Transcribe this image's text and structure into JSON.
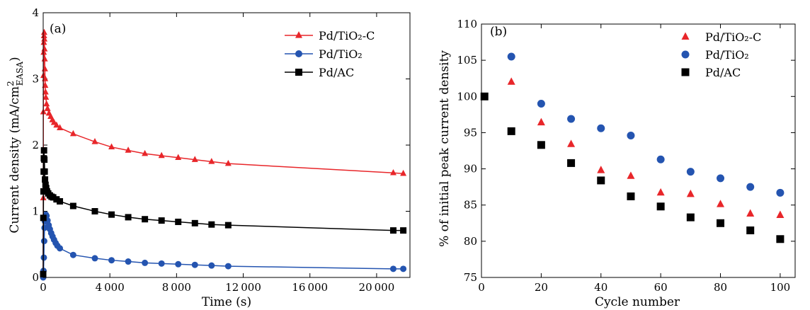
{
  "chart_data": [
    {
      "type": "line",
      "panel_label": "(a)",
      "title": "",
      "xlabel": "Time (s)",
      "ylabel_main": "Current density (mA/cm",
      "ylabel_sup": "2",
      "ylabel_sub": "EASA",
      "ylabel_close": ")",
      "xlim": [
        0,
        22000
      ],
      "ylim": [
        0,
        4
      ],
      "xticks": [
        0,
        4000,
        8000,
        12000,
        16000,
        20000
      ],
      "xtick_labels": [
        "0",
        "4 000",
        "8 000",
        "12 000",
        "16 000",
        "20 000"
      ],
      "yticks": [
        0,
        1,
        2,
        3,
        4
      ],
      "ytick_labels": [
        "0",
        "1",
        "2",
        "3",
        "4"
      ],
      "legend_position": "top-right",
      "series": [
        {
          "name": "Pd/TiO₂-C",
          "color": "#e8262a",
          "marker": "triangle",
          "points": [
            [
              0,
              0.02
            ],
            [
              5,
              1.2
            ],
            [
              10,
              2.5
            ],
            [
              20,
              3.05
            ],
            [
              30,
              3.4
            ],
            [
              40,
              3.55
            ],
            [
              50,
              3.65
            ],
            [
              60,
              3.7
            ],
            [
              70,
              3.6
            ],
            [
              80,
              3.45
            ],
            [
              90,
              3.3
            ],
            [
              100,
              3.15
            ],
            [
              110,
              3.0
            ],
            [
              120,
              2.9
            ],
            [
              140,
              2.8
            ],
            [
              160,
              2.72
            ],
            [
              200,
              2.62
            ],
            [
              260,
              2.55
            ],
            [
              350,
              2.48
            ],
            [
              450,
              2.43
            ],
            [
              550,
              2.38
            ],
            [
              650,
              2.34
            ],
            [
              800,
              2.3
            ],
            [
              1000,
              2.26
            ],
            [
              1800,
              2.17
            ],
            [
              3100,
              2.05
            ],
            [
              4100,
              1.97
            ],
            [
              5100,
              1.92
            ],
            [
              6100,
              1.87
            ],
            [
              7100,
              1.84
            ],
            [
              8100,
              1.81
            ],
            [
              9100,
              1.78
            ],
            [
              10100,
              1.75
            ],
            [
              11100,
              1.72
            ],
            [
              21000,
              1.58
            ],
            [
              21600,
              1.57
            ]
          ]
        },
        {
          "name": "Pd/TiO₂",
          "color": "#2454b0",
          "marker": "circle",
          "points": [
            [
              0,
              0.0
            ],
            [
              20,
              0.1
            ],
            [
              40,
              0.3
            ],
            [
              60,
              0.55
            ],
            [
              80,
              0.75
            ],
            [
              100,
              0.85
            ],
            [
              130,
              0.92
            ],
            [
              160,
              0.95
            ],
            [
              200,
              0.93
            ],
            [
              260,
              0.86
            ],
            [
              330,
              0.79
            ],
            [
              400,
              0.73
            ],
            [
              480,
              0.67
            ],
            [
              560,
              0.62
            ],
            [
              650,
              0.57
            ],
            [
              750,
              0.52
            ],
            [
              850,
              0.48
            ],
            [
              1000,
              0.44
            ],
            [
              1800,
              0.34
            ],
            [
              3100,
              0.29
            ],
            [
              4100,
              0.26
            ],
            [
              5100,
              0.24
            ],
            [
              6100,
              0.22
            ],
            [
              7100,
              0.21
            ],
            [
              8100,
              0.2
            ],
            [
              9100,
              0.19
            ],
            [
              10100,
              0.18
            ],
            [
              11100,
              0.17
            ],
            [
              21000,
              0.13
            ],
            [
              21600,
              0.13
            ]
          ]
        },
        {
          "name": "Pd/AC",
          "color": "#000000",
          "marker": "square",
          "points": [
            [
              0,
              0.05
            ],
            [
              10,
              0.9
            ],
            [
              20,
              1.3
            ],
            [
              30,
              1.6
            ],
            [
              40,
              1.8
            ],
            [
              50,
              1.92
            ],
            [
              70,
              1.78
            ],
            [
              90,
              1.6
            ],
            [
              110,
              1.48
            ],
            [
              140,
              1.4
            ],
            [
              180,
              1.35
            ],
            [
              230,
              1.3
            ],
            [
              300,
              1.27
            ],
            [
              400,
              1.24
            ],
            [
              500,
              1.22
            ],
            [
              600,
              1.21
            ],
            [
              800,
              1.18
            ],
            [
              1000,
              1.15
            ],
            [
              1800,
              1.08
            ],
            [
              3100,
              1.0
            ],
            [
              4100,
              0.95
            ],
            [
              5100,
              0.91
            ],
            [
              6100,
              0.88
            ],
            [
              7100,
              0.86
            ],
            [
              8100,
              0.84
            ],
            [
              9100,
              0.82
            ],
            [
              10100,
              0.8
            ],
            [
              11100,
              0.79
            ],
            [
              21000,
              0.71
            ],
            [
              21600,
              0.71
            ]
          ]
        }
      ]
    },
    {
      "type": "scatter",
      "panel_label": "(b)",
      "title": "",
      "xlabel": "Cycle number",
      "ylabel": "% of initial peak current density",
      "xlim": [
        0,
        105
      ],
      "ylim": [
        75,
        110
      ],
      "xticks": [
        0,
        20,
        40,
        60,
        80,
        100
      ],
      "xtick_labels": [
        "0",
        "20",
        "40",
        "60",
        "80",
        "100"
      ],
      "yticks": [
        75,
        80,
        85,
        90,
        95,
        100,
        105,
        110
      ],
      "ytick_labels": [
        "75",
        "80",
        "85",
        "90",
        "95",
        "100",
        "105",
        "110"
      ],
      "legend_position": "top-right",
      "series": [
        {
          "name": "Pd/TiO₂-C",
          "color": "#e8262a",
          "marker": "triangle",
          "x": [
            10,
            20,
            30,
            40,
            50,
            60,
            70,
            80,
            90,
            100
          ],
          "y": [
            102.0,
            96.4,
            93.4,
            89.8,
            89.0,
            86.7,
            86.5,
            85.1,
            83.8,
            83.6
          ]
        },
        {
          "name": "Pd/TiO₂",
          "color": "#2454b0",
          "marker": "circle",
          "x": [
            10,
            20,
            30,
            40,
            50,
            60,
            70,
            80,
            90,
            100
          ],
          "y": [
            105.5,
            99.0,
            96.9,
            95.6,
            94.6,
            91.3,
            89.6,
            88.7,
            87.5,
            86.7
          ]
        },
        {
          "name": "Pd/AC",
          "color": "#000000",
          "marker": "square",
          "x": [
            1,
            10,
            20,
            30,
            40,
            50,
            60,
            70,
            80,
            90,
            100
          ],
          "y": [
            100.0,
            95.2,
            93.3,
            90.8,
            88.4,
            86.2,
            84.8,
            83.3,
            82.5,
            81.5,
            80.3
          ]
        }
      ]
    }
  ]
}
